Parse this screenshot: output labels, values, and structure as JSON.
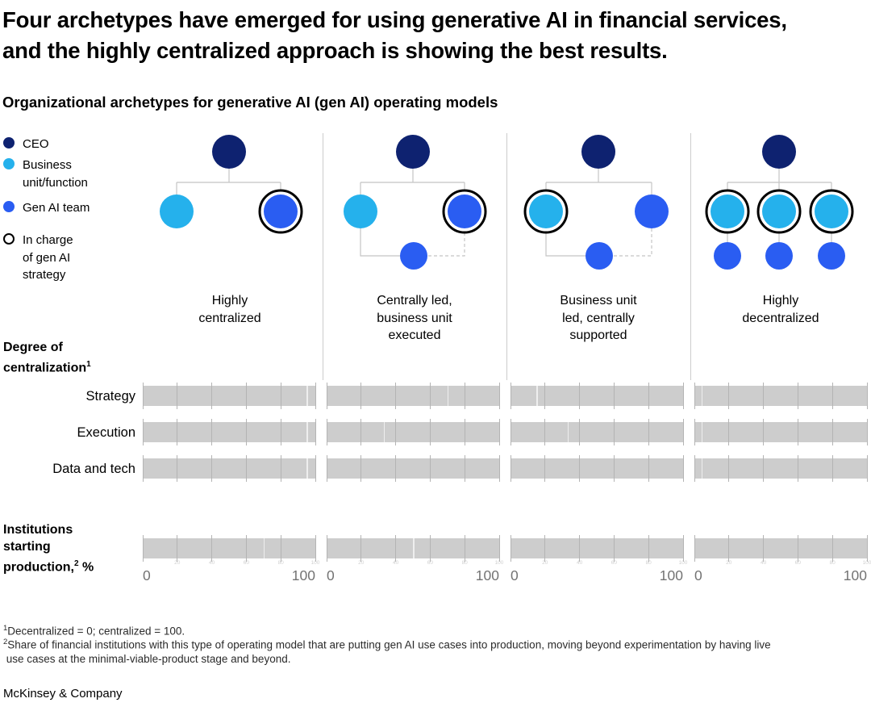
{
  "title": "Four archetypes have emerged for using generative AI in financial services,\nand the highly centralized approach is showing the best results.",
  "subtitle": "Organizational archetypes for generative AI (gen AI) operating models",
  "colors": {
    "ceo": "#0e2270",
    "business_unit": "#25b1ec",
    "genai_team": "#2a5df2",
    "ring": "#000000",
    "bar_track": "#cdcdcd",
    "bar_tick": "#b4b4b4",
    "divider": "#cccccc",
    "connector": "#c4c4c4",
    "axis_label": "#737373"
  },
  "legend": {
    "items": [
      {
        "name": "ceo",
        "label": "CEO"
      },
      {
        "name": "business-unit",
        "label": "Business\nunit/function"
      },
      {
        "name": "genai-team",
        "label": "Gen AI team"
      },
      {
        "name": "in-charge-of-strategy",
        "label": "In charge\nof gen AI\nstrategy"
      }
    ]
  },
  "archetypes": [
    {
      "name": "Highly\ncentralized"
    },
    {
      "name": "Centrally led,\nbusiness unit\nexecuted"
    },
    {
      "name": "Business unit\nled, centrally\nsupported"
    },
    {
      "name": "Highly\ndecentralized"
    }
  ],
  "sections": {
    "degree": {
      "label": "Degree of\ncentralization",
      "sup": "1"
    },
    "production": {
      "label": "Institutions\nstarting\nproduction,",
      "sup": "2",
      "suffix": " %"
    }
  },
  "row_labels": [
    "Strategy",
    "Execution",
    "Data and tech"
  ],
  "axis": {
    "min": "0",
    "max": "100",
    "faint_ticks": [
      "20",
      "40",
      "60",
      "80",
      "100"
    ]
  },
  "chart_data": {
    "type": "bar",
    "title": "Organizational archetypes for generative AI (gen AI) operating models",
    "categories": [
      "Highly centralized",
      "Centrally led, business unit executed",
      "Business unit led, centrally supported",
      "Highly decentralized"
    ],
    "rows": [
      "Strategy",
      "Execution",
      "Data and tech",
      "Institutions starting production, %"
    ],
    "axis_range": [
      0,
      100
    ],
    "bars_rendered_as": "full gray 0-100 tracks with tick gridlines and faint white marker lines; no colored fills visible",
    "markers": {
      "strategy": [
        95,
        70,
        15,
        4
      ],
      "execution": [
        95,
        33,
        33,
        4
      ],
      "data_tech": [
        95,
        null,
        null,
        4
      ],
      "production": [
        70,
        50,
        null,
        null
      ]
    }
  },
  "footnotes": [
    {
      "sup": "1",
      "text": "Decentralized = 0; centralized = 100."
    },
    {
      "sup": "2",
      "text": "Share of financial institutions with this type of operating model that are putting gen AI use cases into production, moving beyond experimentation by having live\n use cases at the minimal-viable-product stage and beyond."
    }
  ],
  "footer": "McKinsey & Company"
}
